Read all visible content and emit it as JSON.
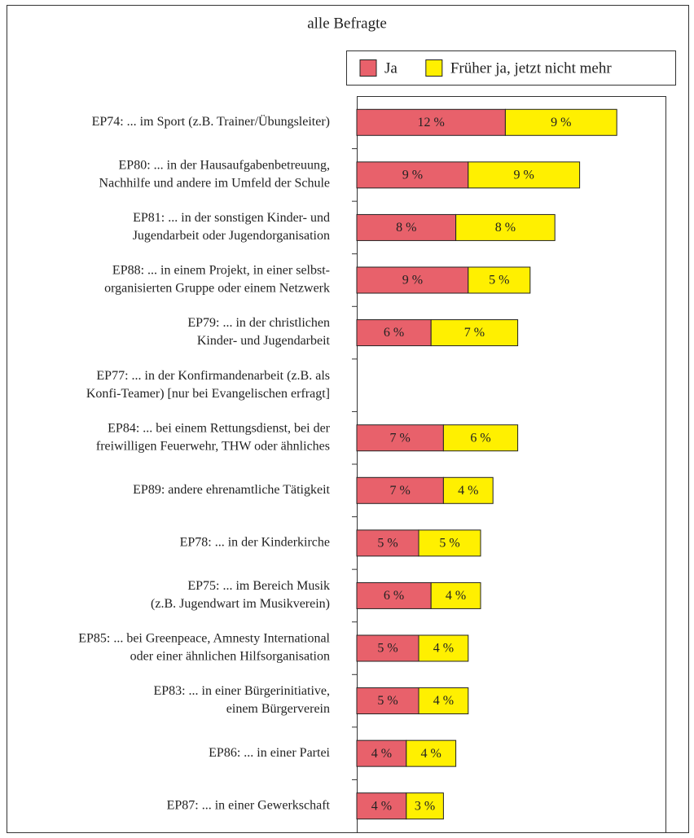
{
  "chart_data": {
    "type": "stacked_barh",
    "title": "alle Befragte",
    "categories": [
      [
        "EP74: ... im Sport (z.B. Trainer/Übungsleiter)"
      ],
      [
        "EP80: ... in der Hausaufgabenbetreuung,",
        "Nachhilfe und andere im Umfeld der Schule"
      ],
      [
        "EP81: ... in der sonstigen Kinder- und",
        "Jugendarbeit oder Jugendorganisation"
      ],
      [
        "EP88: ... in einem Projekt, in einer selbst-",
        "organisierten Gruppe oder einem Netzwerk"
      ],
      [
        "EP79: ... in der christlichen",
        "Kinder- und Jugendarbeit"
      ],
      [
        "EP77: ... in der Konfirmandenarbeit (z.B. als",
        "Konfi-Teamer) [nur bei Evangelischen erfragt]"
      ],
      [
        "EP84: ... bei einem Rettungsdienst, bei der",
        "freiwilligen Feuerwehr, THW oder ähnliches"
      ],
      [
        "EP89: andere ehrenamtliche Tätigkeit"
      ],
      [
        "EP78: ... in der Kinderkirche"
      ],
      [
        "EP75: ... im Bereich Musik",
        "(z.B. Jugendwart im Musikverein)"
      ],
      [
        "EP85: ... bei Greenpeace, Amnesty International",
        "oder einer ähnlichen Hilfsorganisation"
      ],
      [
        "EP83: ... in einer Bürgerinitiative,",
        "einem Bürgerverein"
      ],
      [
        "EP86: ... in einer Partei"
      ],
      [
        "EP87: ... in einer Gewerkschaft"
      ]
    ],
    "series": [
      {
        "name": "Ja",
        "color": "#e8616b",
        "values": [
          12,
          9,
          8,
          9,
          6,
          null,
          7,
          7,
          5,
          6,
          5,
          5,
          4,
          4
        ],
        "value_labels": [
          "12 %",
          "9 %",
          "8 %",
          "9 %",
          "6 %",
          null,
          "7 %",
          "7 %",
          "5 %",
          "6 %",
          "5 %",
          "5 %",
          "4 %",
          "4 %"
        ]
      },
      {
        "name": "Früher ja, jetzt nicht mehr",
        "color": "#fff000",
        "values": [
          9,
          9,
          8,
          5,
          7,
          null,
          6,
          4,
          5,
          4,
          4,
          4,
          4,
          3
        ],
        "value_labels": [
          "9 %",
          "9 %",
          "8 %",
          "5 %",
          "7 %",
          null,
          "6 %",
          "4 %",
          "5 %",
          "4 %",
          "4 %",
          "4 %",
          "4 %",
          "3 %"
        ]
      }
    ],
    "xlim": [
      0,
      25
    ]
  }
}
